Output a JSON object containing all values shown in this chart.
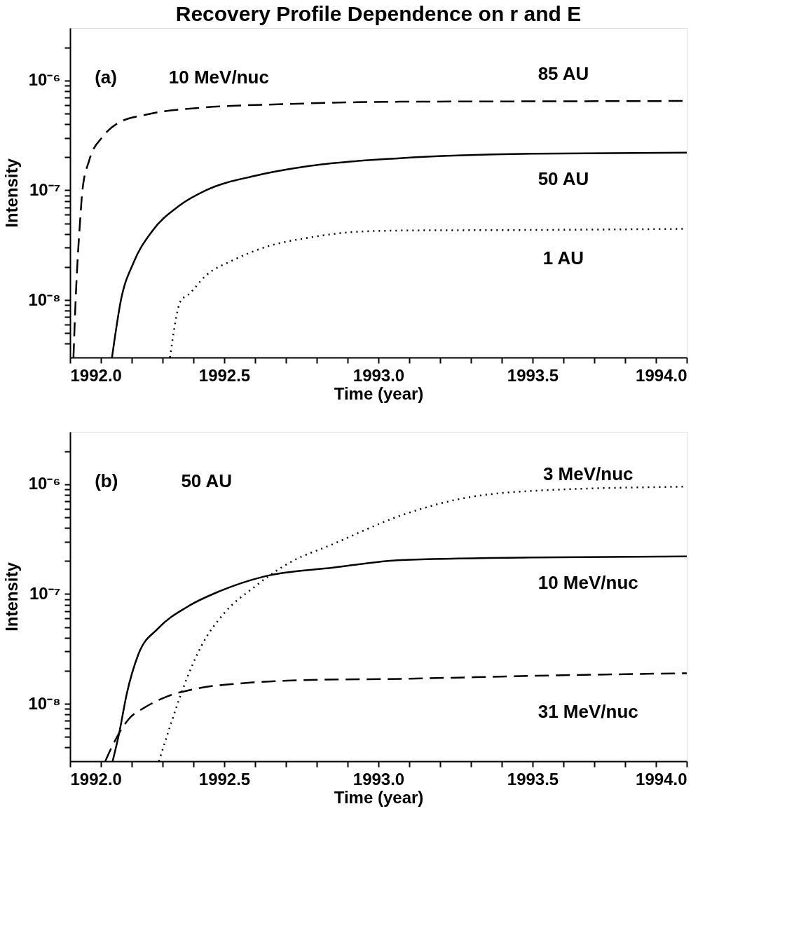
{
  "chart_data": [
    {
      "type": "line",
      "title": "Recovery Profile Dependence on r and E",
      "xlabel": "Time (year)",
      "ylabel": "Intensity",
      "log": "y",
      "grid": false,
      "xlim": [
        1992.0,
        1994.0
      ],
      "xticks": [
        {
          "value": 1992.0,
          "label": "1992.0"
        },
        {
          "value": 1992.1,
          "label": null
        },
        {
          "value": 1992.2,
          "label": null
        },
        {
          "value": 1992.3,
          "label": null
        },
        {
          "value": 1992.4,
          "label": null
        },
        {
          "value": 1992.5,
          "label": "1992.5"
        },
        {
          "value": 1992.6,
          "label": null
        },
        {
          "value": 1992.7,
          "label": null
        },
        {
          "value": 1992.8,
          "label": null
        },
        {
          "value": 1992.9,
          "label": null
        },
        {
          "value": 1993.0,
          "label": "1993.0"
        },
        {
          "value": 1993.1,
          "label": null
        },
        {
          "value": 1993.2,
          "label": null
        },
        {
          "value": 1993.3,
          "label": null
        },
        {
          "value": 1993.4,
          "label": null
        },
        {
          "value": 1993.5,
          "label": "1993.5"
        },
        {
          "value": 1993.6,
          "label": null
        },
        {
          "value": 1993.7,
          "label": null
        },
        {
          "value": 1993.8,
          "label": null
        },
        {
          "value": 1993.9,
          "label": null
        },
        {
          "value": 1994.0,
          "label": "1994.0"
        }
      ],
      "ylim": [
        3e-09,
        3e-06
      ],
      "yticks": [
        {
          "value": 4e-09,
          "label": null
        },
        {
          "value": 5e-09,
          "label": null
        },
        {
          "value": 6e-09,
          "label": null
        },
        {
          "value": 7e-09,
          "label": null
        },
        {
          "value": 8e-09,
          "label": null
        },
        {
          "value": 9e-09,
          "label": null
        },
        {
          "value": 1e-08,
          "label": "10⁻⁸"
        },
        {
          "value": 2e-08,
          "label": null
        },
        {
          "value": 3e-08,
          "label": null
        },
        {
          "value": 4e-08,
          "label": null
        },
        {
          "value": 5e-08,
          "label": null
        },
        {
          "value": 6e-08,
          "label": null
        },
        {
          "value": 7e-08,
          "label": null
        },
        {
          "value": 8e-08,
          "label": null
        },
        {
          "value": 9e-08,
          "label": null
        },
        {
          "value": 1e-07,
          "label": "10⁻⁷"
        },
        {
          "value": 2e-07,
          "label": null
        },
        {
          "value": 3e-07,
          "label": null
        },
        {
          "value": 4e-07,
          "label": null
        },
        {
          "value": 5e-07,
          "label": null
        },
        {
          "value": 6e-07,
          "label": null
        },
        {
          "value": 7e-07,
          "label": null
        },
        {
          "value": 8e-07,
          "label": null
        },
        {
          "value": 9e-07,
          "label": null
        },
        {
          "value": 1e-06,
          "label": "10⁻⁶"
        },
        {
          "value": 2e-06,
          "label": null
        }
      ],
      "series": [
        {
          "color": "#000000",
          "line_style": "dashed",
          "x": [
            1992.011,
            1992.018,
            1992.033,
            1992.04,
            1992.062,
            1992.107,
            1992.154,
            1992.25,
            1992.41,
            1992.706,
            1993.07,
            1993.5,
            1994.0
          ],
          "values": [
            3e-09,
            1e-08,
            5.5e-08,
            1e-07,
            1.87e-07,
            3.1e-07,
            4.07e-07,
            4.9e-07,
            5.6e-07,
            6.1e-07,
            6.4e-07,
            6.45e-07,
            6.5e-07
          ]
        },
        {
          "color": "#000000",
          "line_style": "solid",
          "x": [
            1992.136,
            1992.165,
            1992.206,
            1992.265,
            1992.353,
            1992.441,
            1992.603,
            1992.78,
            1993.07,
            1993.5,
            1994.0
          ],
          "values": [
            3e-09,
            1e-08,
            2.2e-08,
            4.2e-08,
            7.2e-08,
            1e-07,
            1.36e-07,
            1.67e-07,
            1.96e-07,
            2.15e-07,
            2.2e-07
          ]
        },
        {
          "color": "#000000",
          "line_style": "dotted",
          "x": [
            1992.324,
            1992.36,
            1992.382,
            1992.441,
            1992.529,
            1992.632,
            1992.779,
            1992.926,
            1993.074,
            1993.5,
            1994.0
          ],
          "values": [
            3e-09,
            1e-08,
            1.11e-08,
            1.68e-08,
            2.31e-08,
            3.03e-08,
            3.72e-08,
            4.18e-08,
            4.3e-08,
            4.35e-08,
            4.45e-08
          ]
        }
      ],
      "annotations": [
        "(a)",
        "10 MeV/nuc",
        "85 AU",
        "50 AU",
        "1 AU"
      ]
    },
    {
      "type": "line",
      "xlabel": "Time (year)",
      "ylabel": "Intensity",
      "log": "y",
      "grid": false,
      "xlim": [
        1992.0,
        1994.0
      ],
      "xticks": [
        {
          "value": 1992.0,
          "label": "1992.0"
        },
        {
          "value": 1992.1,
          "label": null
        },
        {
          "value": 1992.2,
          "label": null
        },
        {
          "value": 1992.3,
          "label": null
        },
        {
          "value": 1992.4,
          "label": null
        },
        {
          "value": 1992.5,
          "label": "1992.5"
        },
        {
          "value": 1992.6,
          "label": null
        },
        {
          "value": 1992.7,
          "label": null
        },
        {
          "value": 1992.8,
          "label": null
        },
        {
          "value": 1992.9,
          "label": null
        },
        {
          "value": 1993.0,
          "label": "1993.0"
        },
        {
          "value": 1993.1,
          "label": null
        },
        {
          "value": 1993.2,
          "label": null
        },
        {
          "value": 1993.3,
          "label": null
        },
        {
          "value": 1993.4,
          "label": null
        },
        {
          "value": 1993.5,
          "label": "1993.5"
        },
        {
          "value": 1993.6,
          "label": null
        },
        {
          "value": 1993.7,
          "label": null
        },
        {
          "value": 1993.8,
          "label": null
        },
        {
          "value": 1993.9,
          "label": null
        },
        {
          "value": 1994.0,
          "label": "1994.0"
        }
      ],
      "ylim": [
        3e-09,
        3e-06
      ],
      "yticks": [
        {
          "value": 4e-09,
          "label": null
        },
        {
          "value": 5e-09,
          "label": null
        },
        {
          "value": 6e-09,
          "label": null
        },
        {
          "value": 7e-09,
          "label": null
        },
        {
          "value": 8e-09,
          "label": null
        },
        {
          "value": 9e-09,
          "label": null
        },
        {
          "value": 1e-08,
          "label": "10⁻⁸"
        },
        {
          "value": 2e-08,
          "label": null
        },
        {
          "value": 3e-08,
          "label": null
        },
        {
          "value": 4e-08,
          "label": null
        },
        {
          "value": 5e-08,
          "label": null
        },
        {
          "value": 6e-08,
          "label": null
        },
        {
          "value": 7e-08,
          "label": null
        },
        {
          "value": 8e-08,
          "label": null
        },
        {
          "value": 9e-08,
          "label": null
        },
        {
          "value": 1e-07,
          "label": "10⁻⁷"
        },
        {
          "value": 2e-07,
          "label": null
        },
        {
          "value": 3e-07,
          "label": null
        },
        {
          "value": 4e-07,
          "label": null
        },
        {
          "value": 5e-07,
          "label": null
        },
        {
          "value": 6e-07,
          "label": null
        },
        {
          "value": 7e-07,
          "label": null
        },
        {
          "value": 8e-07,
          "label": null
        },
        {
          "value": 9e-07,
          "label": null
        },
        {
          "value": 1e-06,
          "label": "10⁻⁶"
        },
        {
          "value": 2e-06,
          "label": null
        }
      ],
      "series": [
        {
          "color": "#000000",
          "line_style": "dotted",
          "x": [
            1992.288,
            1992.324,
            1992.368,
            1992.426,
            1992.5,
            1992.596,
            1992.706,
            1992.853,
            1993.074,
            1993.25,
            1993.5,
            1994.0
          ],
          "values": [
            3e-09,
            6.2e-09,
            1.42e-08,
            3.37e-08,
            6.7e-08,
            1.15e-07,
            1.89e-07,
            2.85e-07,
            5.2e-07,
            7.2e-07,
            8.7e-07,
            9.5e-07
          ]
        },
        {
          "color": "#000000",
          "line_style": "solid",
          "x": [
            1992.138,
            1992.158,
            1992.184,
            1992.221,
            1992.287,
            1992.382,
            1992.485,
            1992.632,
            1992.853,
            1993.074,
            1993.5,
            1994.0
          ],
          "values": [
            3e-09,
            5.2e-09,
            1.24e-08,
            2.8e-08,
            4.9e-08,
            7.7e-08,
            1.06e-07,
            1.45e-07,
            1.74e-07,
            2.04e-07,
            2.15e-07,
            2.2e-07
          ]
        },
        {
          "color": "#000000",
          "line_style": "dashed",
          "x": [
            1992.114,
            1992.14,
            1992.162,
            1992.191,
            1992.243,
            1992.316,
            1992.412,
            1992.559,
            1992.779,
            1993.074,
            1993.5,
            1994.0
          ],
          "values": [
            3e-09,
            4.3e-09,
            5.6e-09,
            7.3e-09,
            9.3e-09,
            1.17e-08,
            1.38e-08,
            1.54e-08,
            1.65e-08,
            1.69e-08,
            1.8e-08,
            1.9e-08
          ]
        }
      ],
      "annotations": [
        "(b)",
        "50 AU",
        "3 MeV/nuc",
        "10 MeV/nuc",
        "31 MeV/nuc"
      ]
    }
  ]
}
